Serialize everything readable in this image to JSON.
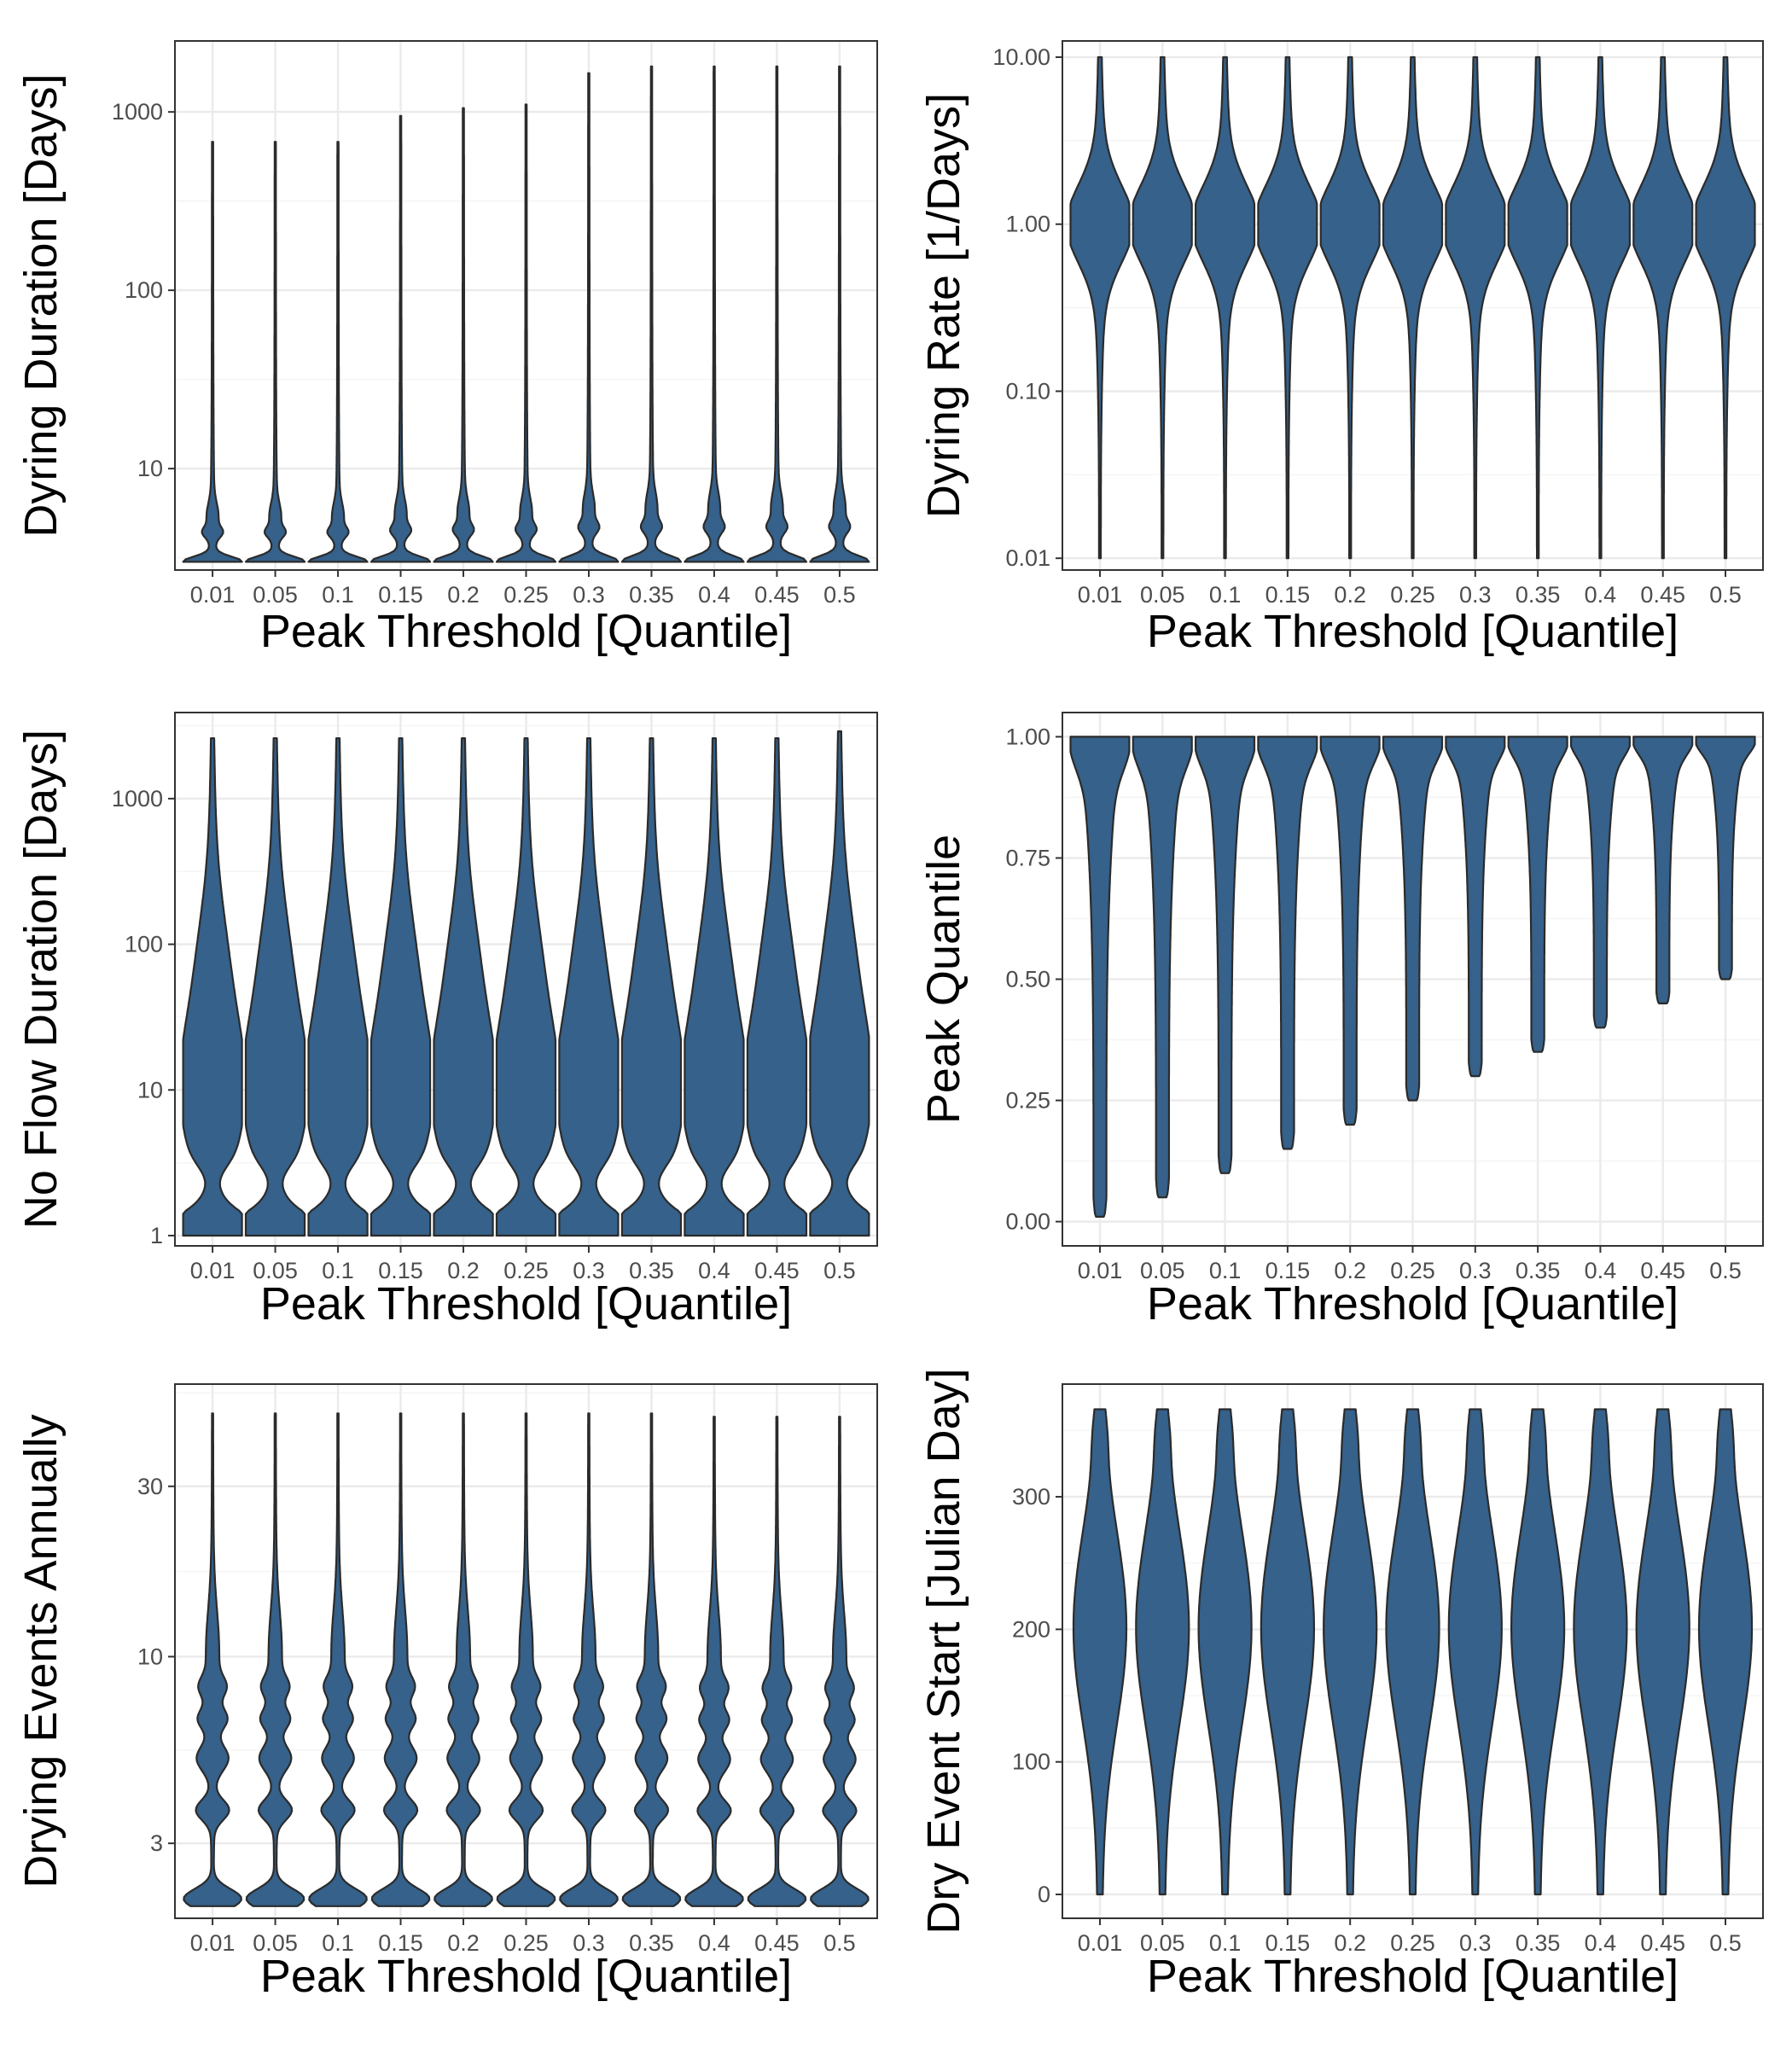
{
  "colors": {
    "violin_fill": "#35618a",
    "violin_stroke": "#2b2b2b",
    "panel_border": "#333333",
    "grid_major": "#ebebeb",
    "grid_minor": "#f5f5f5",
    "tick_text": "#4d4d4d"
  },
  "chart_data": [
    {
      "type": "violin",
      "categories": [
        "0.01",
        "0.05",
        "0.1",
        "0.15",
        "0.2",
        "0.25",
        "0.3",
        "0.35",
        "0.4",
        "0.45",
        "0.5"
      ],
      "xlabel": "Peak Threshold [Quantile]",
      "ylabel": "Dyring Duration [Days]",
      "yscale": "log",
      "ylim": [
        2.7,
        2500
      ],
      "yticks": [
        10,
        100,
        1000
      ],
      "ytick_labels": [
        "10",
        "100",
        "1000"
      ],
      "grid": true,
      "violins": [
        {
          "category": "0.01",
          "min": 3,
          "max": 680
        },
        {
          "category": "0.05",
          "min": 3,
          "max": 680
        },
        {
          "category": "0.1",
          "min": 3,
          "max": 680
        },
        {
          "category": "0.15",
          "min": 3,
          "max": 950
        },
        {
          "category": "0.2",
          "min": 3,
          "max": 1050
        },
        {
          "category": "0.25",
          "min": 3,
          "max": 1100
        },
        {
          "category": "0.3",
          "min": 3,
          "max": 1650
        },
        {
          "category": "0.35",
          "min": 3,
          "max": 1800
        },
        {
          "category": "0.4",
          "min": 3,
          "max": 1800
        },
        {
          "category": "0.45",
          "min": 3,
          "max": 1800
        },
        {
          "category": "0.5",
          "min": 3,
          "max": 1800
        }
      ]
    },
    {
      "type": "violin",
      "categories": [
        "0.01",
        "0.05",
        "0.1",
        "0.15",
        "0.2",
        "0.25",
        "0.3",
        "0.35",
        "0.4",
        "0.45",
        "0.5"
      ],
      "xlabel": "Peak Threshold [Quantile]",
      "ylabel": "Dyring Rate [1/Days]",
      "yscale": "log",
      "ylim": [
        0.0085,
        12.5
      ],
      "yticks": [
        0.01,
        0.1,
        1,
        10
      ],
      "ytick_labels": [
        "0.01",
        "0.10",
        "1.00",
        "10.00"
      ],
      "grid": true,
      "violins": [
        {
          "category": "0.01",
          "min": 0.01,
          "max": 10
        },
        {
          "category": "0.05",
          "min": 0.01,
          "max": 10
        },
        {
          "category": "0.1",
          "min": 0.01,
          "max": 10
        },
        {
          "category": "0.15",
          "min": 0.01,
          "max": 10
        },
        {
          "category": "0.2",
          "min": 0.01,
          "max": 10
        },
        {
          "category": "0.25",
          "min": 0.01,
          "max": 10
        },
        {
          "category": "0.3",
          "min": 0.01,
          "max": 10
        },
        {
          "category": "0.35",
          "min": 0.01,
          "max": 10
        },
        {
          "category": "0.4",
          "min": 0.01,
          "max": 10
        },
        {
          "category": "0.45",
          "min": 0.01,
          "max": 10
        },
        {
          "category": "0.5",
          "min": 0.01,
          "max": 10
        }
      ]
    },
    {
      "type": "violin",
      "categories": [
        "0.01",
        "0.05",
        "0.1",
        "0.15",
        "0.2",
        "0.25",
        "0.3",
        "0.35",
        "0.4",
        "0.45",
        "0.5"
      ],
      "xlabel": "Peak Threshold [Quantile]",
      "ylabel": "No Flow Duration [Days]",
      "yscale": "log",
      "ylim": [
        0.85,
        3900
      ],
      "yticks": [
        1,
        10,
        100,
        1000
      ],
      "ytick_labels": [
        "1",
        "10",
        "100",
        "1000"
      ],
      "grid": true,
      "violins": [
        {
          "category": "0.01",
          "min": 1,
          "max": 2600
        },
        {
          "category": "0.05",
          "min": 1,
          "max": 2600
        },
        {
          "category": "0.1",
          "min": 1,
          "max": 2600
        },
        {
          "category": "0.15",
          "min": 1,
          "max": 2600
        },
        {
          "category": "0.2",
          "min": 1,
          "max": 2600
        },
        {
          "category": "0.25",
          "min": 1,
          "max": 2600
        },
        {
          "category": "0.3",
          "min": 1,
          "max": 2600
        },
        {
          "category": "0.35",
          "min": 1,
          "max": 2600
        },
        {
          "category": "0.4",
          "min": 1,
          "max": 2600
        },
        {
          "category": "0.45",
          "min": 1,
          "max": 2600
        },
        {
          "category": "0.5",
          "min": 1,
          "max": 2900
        }
      ]
    },
    {
      "type": "violin",
      "categories": [
        "0.01",
        "0.05",
        "0.1",
        "0.15",
        "0.2",
        "0.25",
        "0.3",
        "0.35",
        "0.4",
        "0.45",
        "0.5"
      ],
      "xlabel": "Peak Threshold [Quantile]",
      "ylabel": "Peak Quantile",
      "yscale": "linear",
      "ylim": [
        -0.05,
        1.05
      ],
      "yticks": [
        0,
        0.25,
        0.5,
        0.75,
        1
      ],
      "ytick_labels": [
        "0.00",
        "0.25",
        "0.50",
        "0.75",
        "1.00"
      ],
      "grid": true,
      "violins": [
        {
          "category": "0.01",
          "min": 0.01,
          "max": 1
        },
        {
          "category": "0.05",
          "min": 0.05,
          "max": 1
        },
        {
          "category": "0.1",
          "min": 0.1,
          "max": 1
        },
        {
          "category": "0.15",
          "min": 0.15,
          "max": 1
        },
        {
          "category": "0.2",
          "min": 0.2,
          "max": 1
        },
        {
          "category": "0.25",
          "min": 0.25,
          "max": 1
        },
        {
          "category": "0.3",
          "min": 0.3,
          "max": 1
        },
        {
          "category": "0.35",
          "min": 0.35,
          "max": 1
        },
        {
          "category": "0.4",
          "min": 0.4,
          "max": 1
        },
        {
          "category": "0.45",
          "min": 0.45,
          "max": 1
        },
        {
          "category": "0.5",
          "min": 0.5,
          "max": 1
        }
      ]
    },
    {
      "type": "violin",
      "categories": [
        "0.01",
        "0.05",
        "0.1",
        "0.15",
        "0.2",
        "0.25",
        "0.3",
        "0.35",
        "0.4",
        "0.45",
        "0.5"
      ],
      "xlabel": "Peak Threshold [Quantile]",
      "ylabel": "Drying Events Annually",
      "yscale": "log",
      "ylim": [
        1.85,
        58
      ],
      "yticks": [
        3,
        10,
        30
      ],
      "ytick_labels": [
        "3",
        "10",
        "30"
      ],
      "grid": true,
      "violins": [
        {
          "category": "0.01",
          "min": 2,
          "max": 48
        },
        {
          "category": "0.05",
          "min": 2,
          "max": 48
        },
        {
          "category": "0.1",
          "min": 2,
          "max": 48
        },
        {
          "category": "0.15",
          "min": 2,
          "max": 48
        },
        {
          "category": "0.2",
          "min": 2,
          "max": 48
        },
        {
          "category": "0.25",
          "min": 2,
          "max": 48
        },
        {
          "category": "0.3",
          "min": 2,
          "max": 48
        },
        {
          "category": "0.35",
          "min": 2,
          "max": 48
        },
        {
          "category": "0.4",
          "min": 2,
          "max": 47
        },
        {
          "category": "0.45",
          "min": 2,
          "max": 47
        },
        {
          "category": "0.5",
          "min": 2,
          "max": 47
        }
      ]
    },
    {
      "type": "violin",
      "categories": [
        "0.01",
        "0.05",
        "0.1",
        "0.15",
        "0.2",
        "0.25",
        "0.3",
        "0.35",
        "0.4",
        "0.45",
        "0.5"
      ],
      "xlabel": "Peak Threshold [Quantile]",
      "ylabel": "Dry Event Start [Julian Day]",
      "yscale": "linear",
      "ylim": [
        -18,
        385
      ],
      "yticks": [
        0,
        100,
        200,
        300
      ],
      "ytick_labels": [
        "0",
        "100",
        "200",
        "300"
      ],
      "grid": true,
      "violins": [
        {
          "category": "0.01",
          "min": 0,
          "max": 366
        },
        {
          "category": "0.05",
          "min": 0,
          "max": 366
        },
        {
          "category": "0.1",
          "min": 0,
          "max": 366
        },
        {
          "category": "0.15",
          "min": 0,
          "max": 366
        },
        {
          "category": "0.2",
          "min": 0,
          "max": 366
        },
        {
          "category": "0.25",
          "min": 0,
          "max": 366
        },
        {
          "category": "0.3",
          "min": 0,
          "max": 366
        },
        {
          "category": "0.35",
          "min": 0,
          "max": 366
        },
        {
          "category": "0.4",
          "min": 0,
          "max": 366
        },
        {
          "category": "0.45",
          "min": 0,
          "max": 366
        },
        {
          "category": "0.5",
          "min": 0,
          "max": 366
        }
      ]
    }
  ]
}
